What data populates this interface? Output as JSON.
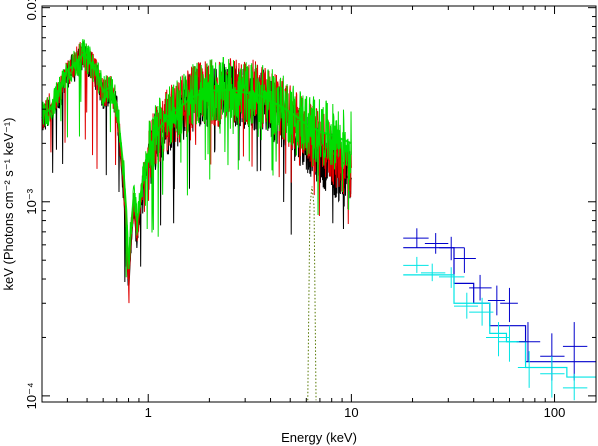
{
  "chart_data": {
    "type": "line",
    "xlabel": "Energy (keV)",
    "ylabel": "keV (Photons cm⁻² s⁻¹ keV⁻¹)",
    "xscale": "log",
    "yscale": "log",
    "xlim": [
      0.3,
      160
    ],
    "ylim": [
      9.3e-05,
      0.0102
    ],
    "x_tick_labels": [
      "1",
      "10",
      "100"
    ],
    "y_tick_labels": [
      "10⁻⁴",
      "10⁻³",
      "0.01"
    ],
    "grid": false,
    "legend": "none",
    "series": [
      {
        "color": "#000000",
        "style": "noisy-spectrum",
        "x": [
          0.3,
          0.33,
          0.36,
          0.4,
          0.44,
          0.48,
          0.52,
          0.56,
          0.6,
          0.65,
          0.7,
          0.75,
          0.78,
          0.8,
          0.82,
          0.85,
          0.88,
          0.9,
          0.93,
          0.97,
          1.02,
          1.1,
          1.2,
          1.3,
          1.4,
          1.5,
          1.6,
          1.8,
          2.0,
          2.2,
          2.5,
          2.8,
          3.2,
          3.6,
          4.0,
          4.5,
          5.0,
          5.5,
          6.0,
          6.5,
          7.0,
          8.0,
          9.0,
          10.0
        ],
        "y": [
          0.0026,
          0.0029,
          0.0034,
          0.0046,
          0.005,
          0.0057,
          0.005,
          0.0044,
          0.0035,
          0.0038,
          0.003,
          0.0013,
          0.00075,
          0.00037,
          0.00062,
          0.00095,
          0.00065,
          0.0008,
          0.0011,
          0.0014,
          0.0017,
          0.0021,
          0.0024,
          0.0027,
          0.0028,
          0.003,
          0.0033,
          0.0035,
          0.0036,
          0.0035,
          0.0036,
          0.0035,
          0.0035,
          0.0033,
          0.0031,
          0.0028,
          0.0025,
          0.0023,
          0.0021,
          0.0019,
          0.0018,
          0.0016,
          0.0014,
          0.0013
        ]
      },
      {
        "color": "#e00000",
        "style": "noisy-spectrum",
        "x": [
          0.3,
          0.33,
          0.36,
          0.4,
          0.44,
          0.48,
          0.52,
          0.56,
          0.6,
          0.65,
          0.7,
          0.75,
          0.78,
          0.8,
          0.82,
          0.85,
          0.88,
          0.9,
          0.93,
          0.97,
          1.02,
          1.1,
          1.2,
          1.3,
          1.4,
          1.5,
          1.6,
          1.8,
          2.0,
          2.2,
          2.5,
          2.8,
          3.2,
          3.6,
          4.0,
          4.5,
          5.0,
          5.5,
          6.0,
          6.5,
          7.0,
          8.0,
          9.0,
          10.0
        ],
        "y": [
          0.0027,
          0.0031,
          0.0035,
          0.0047,
          0.0052,
          0.0059,
          0.0051,
          0.0045,
          0.0036,
          0.0039,
          0.0031,
          0.0014,
          0.0008,
          0.0004,
          0.00065,
          0.001,
          0.0007,
          0.00085,
          0.00115,
          0.0015,
          0.0018,
          0.0022,
          0.0025,
          0.0028,
          0.0029,
          0.0031,
          0.0034,
          0.0036,
          0.0037,
          0.0036,
          0.0038,
          0.0037,
          0.0037,
          0.0035,
          0.0033,
          0.003,
          0.0027,
          0.0025,
          0.0023,
          0.0021,
          0.002,
          0.0018,
          0.0016,
          0.0015
        ]
      },
      {
        "color": "#00dd00",
        "style": "noisy-spectrum",
        "x": [
          0.3,
          0.33,
          0.36,
          0.4,
          0.44,
          0.48,
          0.52,
          0.56,
          0.6,
          0.65,
          0.7,
          0.75,
          0.78,
          0.8,
          0.82,
          0.85,
          0.88,
          0.9,
          0.93,
          0.97,
          1.02,
          1.1,
          1.2,
          1.3,
          1.4,
          1.5,
          1.6,
          1.8,
          2.0,
          2.2,
          2.5,
          2.8,
          3.2,
          3.6,
          4.0,
          4.5,
          5.0,
          5.5,
          6.0,
          6.5,
          7.0,
          8.0,
          9.0,
          10.0
        ],
        "y": [
          0.0028,
          0.003,
          0.0036,
          0.0048,
          0.0051,
          0.0058,
          0.0052,
          0.0046,
          0.0037,
          0.0039,
          0.0032,
          0.0016,
          0.0009,
          0.00045,
          0.0007,
          0.0011,
          0.0008,
          0.0009,
          0.0012,
          0.0016,
          0.0019,
          0.0023,
          0.0026,
          0.0029,
          0.003,
          0.0032,
          0.0034,
          0.0036,
          0.0038,
          0.0037,
          0.0038,
          0.0037,
          0.0036,
          0.0035,
          0.0033,
          0.0031,
          0.0029,
          0.0027,
          0.0025,
          0.0024,
          0.0023,
          0.0022,
          0.0021,
          0.002
        ]
      },
      {
        "color": "#0000cc",
        "style": "step-model",
        "x": [
          18,
          25,
          32,
          40,
          48,
          58,
          72,
          90,
          115,
          160
        ],
        "y": [
          0.00058,
          0.00058,
          0.00038,
          0.0003,
          0.00023,
          0.00023,
          0.00015,
          0.00015,
          0.00015,
          0.00015
        ]
      },
      {
        "color": "#00e5e5",
        "style": "step-model",
        "x": [
          18,
          25,
          32,
          40,
          48,
          58,
          72,
          90,
          115,
          160
        ],
        "y": [
          0.00042,
          0.00042,
          0.0003,
          0.0003,
          0.00021,
          0.00019,
          0.00014,
          0.00014,
          0.000125,
          0.000125
        ]
      },
      {
        "color": "#0000cc",
        "style": "points",
        "x": [
          21,
          26,
          31,
          36,
          43,
          52,
          60,
          74,
          97,
          125
        ],
        "y": [
          0.00065,
          0.00061,
          0.00058,
          0.00051,
          0.00036,
          0.00031,
          0.0003,
          0.00019,
          0.00016,
          0.00018
        ],
        "xerr": [
          [
            18,
            24
          ],
          [
            23,
            30
          ],
          [
            27,
            36
          ],
          [
            32,
            41
          ],
          [
            38,
            49
          ],
          [
            47,
            57
          ],
          [
            54,
            66
          ],
          [
            65,
            85
          ],
          [
            85,
            112
          ],
          [
            110,
            145
          ]
        ],
        "yerr": [
          [
            0.00058,
            0.00073
          ],
          [
            0.00054,
            0.00069
          ],
          [
            0.0005,
            0.00066
          ],
          [
            0.00043,
            0.00058
          ],
          [
            0.00031,
            0.00042
          ],
          [
            0.00026,
            0.00037
          ],
          [
            0.00024,
            0.00036
          ],
          [
            0.00015,
            0.00024
          ],
          [
            0.00012,
            0.00021
          ],
          [
            0.00012,
            0.00024
          ]
        ]
      },
      {
        "color": "#00e5e5",
        "style": "points",
        "x": [
          21,
          25,
          31,
          37,
          44,
          53,
          60,
          75,
          97,
          125
        ],
        "y": [
          0.00047,
          0.00043,
          0.00041,
          0.00029,
          0.00027,
          0.0002,
          0.00019,
          0.00014,
          0.00013,
          0.00011
        ],
        "xerr": [
          [
            18,
            24
          ],
          [
            22,
            29
          ],
          [
            27,
            36
          ],
          [
            32,
            42
          ],
          [
            38,
            50
          ],
          [
            46,
            60
          ],
          [
            53,
            67
          ],
          [
            66,
            85
          ],
          [
            85,
            112
          ],
          [
            110,
            145
          ]
        ],
        "yerr": [
          [
            0.00043,
            0.00052
          ],
          [
            0.00039,
            0.00048
          ],
          [
            0.00036,
            0.00046
          ],
          [
            0.00025,
            0.00034
          ],
          [
            0.00023,
            0.00032
          ],
          [
            0.00016,
            0.00024
          ],
          [
            0.00015,
            0.00023
          ],
          [
            0.00011,
            0.00017
          ],
          [
            9.8e-05,
            0.00016
          ],
          [
            9.5e-05,
            0.00013
          ]
        ]
      },
      {
        "color": "#557700",
        "style": "dotted-line",
        "x": [
          6.1,
          6.25,
          6.4,
          6.55,
          6.7
        ],
        "y": [
          9.5e-05,
          0.00095,
          0.0012,
          0.00095,
          9.5e-05
        ]
      }
    ]
  }
}
